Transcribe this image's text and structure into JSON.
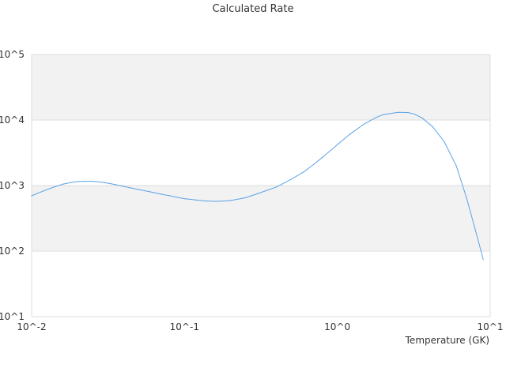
{
  "chart_data": {
    "type": "line",
    "title": "Calculated Rate",
    "xlabel": "Temperature (GK)",
    "ylabel": "",
    "xscale": "log",
    "yscale": "log",
    "xlim": [
      0.01,
      10
    ],
    "ylim": [
      10,
      100000
    ],
    "x_ticks": [
      "10^-2",
      "10^-1",
      "10^0",
      "10^1"
    ],
    "y_ticks": [
      "10^1",
      "10^2",
      "10^3",
      "10^4",
      "10^5"
    ],
    "grid": true,
    "alternating_bands": true,
    "colors": {
      "line": "#5aa2e6",
      "band": "#f2f2f2",
      "grid": "#dddddd"
    },
    "series": [
      {
        "x": [
          0.01,
          0.012,
          0.014,
          0.016,
          0.018,
          0.02,
          0.022,
          0.025,
          0.03,
          0.035,
          0.04,
          0.05,
          0.06,
          0.07,
          0.08,
          0.09,
          0.1,
          0.12,
          0.14,
          0.16,
          0.18,
          0.2,
          0.25,
          0.3,
          0.4,
          0.5,
          0.6,
          0.7,
          0.8,
          1.0,
          1.2,
          1.5,
          1.8,
          2.0,
          2.5,
          2.9,
          3.2,
          3.6,
          4.2,
          5.0,
          6.0,
          7.0,
          8.0,
          9.0
        ],
        "y": [
          700,
          830,
          950,
          1050,
          1110,
          1150,
          1160,
          1160,
          1110,
          1040,
          970,
          870,
          800,
          740,
          700,
          660,
          630,
          600,
          580,
          575,
          580,
          590,
          650,
          750,
          950,
          1250,
          1600,
          2100,
          2700,
          4200,
          6000,
          8700,
          11000,
          12100,
          13100,
          13000,
          12300,
          10700,
          7900,
          4700,
          2000,
          650,
          210,
          75
        ]
      }
    ]
  }
}
